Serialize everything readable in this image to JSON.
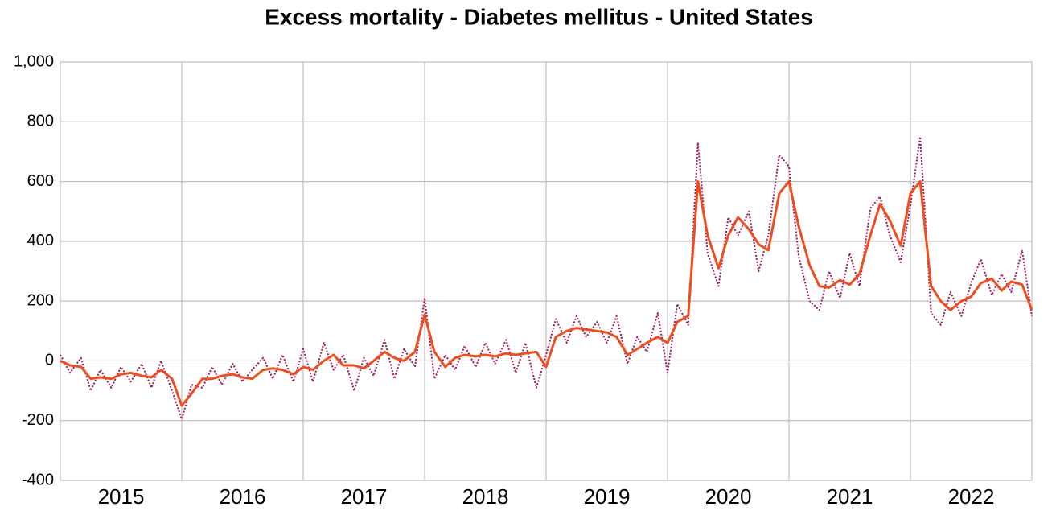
{
  "chart_data": {
    "type": "line",
    "title": "Excess mortality - Diabetes mellitus - United States",
    "categories": [
      "2015",
      "2016",
      "2017",
      "2018",
      "2019",
      "2020",
      "2021",
      "2022"
    ],
    "x": [
      2015.0,
      2015.08,
      2015.17,
      2015.25,
      2015.33,
      2015.42,
      2015.5,
      2015.58,
      2015.67,
      2015.75,
      2015.83,
      2015.92,
      2016.0,
      2016.08,
      2016.17,
      2016.25,
      2016.33,
      2016.42,
      2016.5,
      2016.58,
      2016.67,
      2016.75,
      2016.83,
      2016.92,
      2017.0,
      2017.08,
      2017.17,
      2017.25,
      2017.33,
      2017.42,
      2017.5,
      2017.58,
      2017.67,
      2017.75,
      2017.83,
      2017.92,
      2018.0,
      2018.08,
      2018.17,
      2018.25,
      2018.33,
      2018.42,
      2018.5,
      2018.58,
      2018.67,
      2018.75,
      2018.83,
      2018.92,
      2019.0,
      2019.08,
      2019.17,
      2019.25,
      2019.33,
      2019.42,
      2019.5,
      2019.58,
      2019.67,
      2019.75,
      2019.83,
      2019.92,
      2020.0,
      2020.08,
      2020.17,
      2020.25,
      2020.33,
      2020.42,
      2020.5,
      2020.58,
      2020.67,
      2020.75,
      2020.83,
      2020.92,
      2021.0,
      2021.08,
      2021.17,
      2021.25,
      2021.33,
      2021.42,
      2021.5,
      2021.58,
      2021.67,
      2021.75,
      2021.83,
      2021.92,
      2022.0,
      2022.08,
      2022.17,
      2022.25,
      2022.33,
      2022.42,
      2022.5,
      2022.58,
      2022.67,
      2022.75,
      2022.83,
      2022.92,
      2023.0
    ],
    "series": [
      {
        "color": "#a0185e",
        "style": "dotted",
        "values": [
          20,
          -40,
          10,
          -100,
          -30,
          -90,
          -20,
          -70,
          -10,
          -90,
          0,
          -100,
          -195,
          -80,
          -90,
          -20,
          -80,
          -10,
          -70,
          -30,
          10,
          -60,
          20,
          -70,
          40,
          -70,
          60,
          -30,
          20,
          -100,
          10,
          -50,
          70,
          -60,
          40,
          -20,
          210,
          -60,
          20,
          -30,
          50,
          -20,
          60,
          -10,
          70,
          -40,
          60,
          -90,
          20,
          140,
          60,
          150,
          80,
          130,
          60,
          150,
          -10,
          80,
          30,
          160,
          -40,
          190,
          120,
          730,
          360,
          250,
          480,
          420,
          500,
          300,
          420,
          690,
          650,
          350,
          200,
          170,
          300,
          210,
          360,
          250,
          510,
          550,
          420,
          330,
          520,
          750,
          160,
          120,
          230,
          150,
          260,
          340,
          220,
          290,
          230,
          370,
          150
        ]
      },
      {
        "color": "#ee4d1f",
        "style": "solid",
        "values": [
          0,
          -15,
          -20,
          -60,
          -55,
          -60,
          -45,
          -40,
          -50,
          -55,
          -30,
          -60,
          -150,
          -110,
          -60,
          -60,
          -50,
          -45,
          -55,
          -60,
          -30,
          -25,
          -30,
          -45,
          -20,
          -30,
          0,
          20,
          -15,
          -15,
          -25,
          0,
          30,
          10,
          0,
          30,
          155,
          30,
          -20,
          10,
          20,
          15,
          20,
          15,
          25,
          20,
          25,
          30,
          -20,
          80,
          100,
          110,
          105,
          100,
          95,
          80,
          20,
          40,
          60,
          80,
          60,
          130,
          150,
          600,
          420,
          310,
          420,
          480,
          440,
          390,
          370,
          560,
          600,
          450,
          320,
          250,
          245,
          270,
          255,
          290,
          420,
          525,
          470,
          385,
          560,
          600,
          250,
          200,
          170,
          200,
          215,
          260,
          275,
          235,
          265,
          255,
          170
        ]
      }
    ],
    "xlim": [
      2015,
      2023
    ],
    "xticks": [
      2016,
      2017,
      2018,
      2019,
      2020,
      2021,
      2022
    ],
    "ylim": [
      -400,
      1000
    ],
    "yticks": [
      -400,
      -200,
      0,
      200,
      400,
      600,
      800,
      {
        "value": 1000,
        "label": "1,000"
      }
    ],
    "grid": true
  }
}
